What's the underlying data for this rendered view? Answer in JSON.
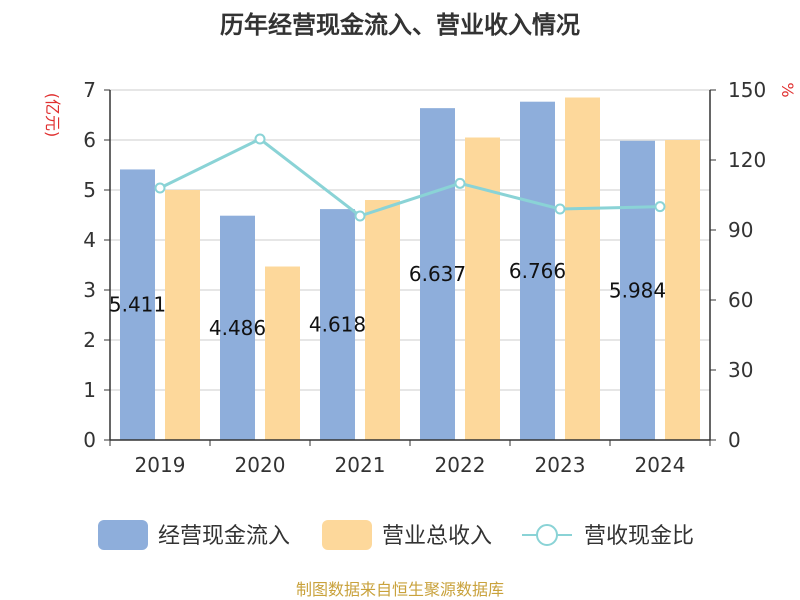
{
  "chart_data": {
    "type": "bar",
    "title": "历年经营现金流入、营业收入情况",
    "categories": [
      "2019",
      "2020",
      "2021",
      "2022",
      "2023",
      "2024"
    ],
    "y_left": {
      "unit": "(亿元)",
      "ylim": [
        0,
        7
      ],
      "ticks": [
        "0",
        "1",
        "2",
        "3",
        "4",
        "5",
        "6",
        "7"
      ]
    },
    "y_right": {
      "unit": "%",
      "ylim": [
        0,
        150
      ],
      "ticks": [
        "0",
        "30",
        "60",
        "90",
        "120",
        "150"
      ]
    },
    "series": [
      {
        "name": "经营现金流入",
        "type": "bar",
        "axis": "left",
        "color": "#8eaedb",
        "values": [
          5.411,
          4.486,
          4.618,
          6.637,
          6.766,
          5.984
        ],
        "labels": [
          "5.411",
          "4.486",
          "4.618",
          "6.637",
          "6.766",
          "5.984"
        ]
      },
      {
        "name": "营业总收入",
        "type": "bar",
        "axis": "left",
        "color": "#fdd89b",
        "values": [
          5.0,
          3.47,
          4.8,
          6.05,
          6.85,
          6.0
        ]
      },
      {
        "name": "营收现金比",
        "type": "line",
        "axis": "right",
        "color": "#8ad3d6",
        "values": [
          108,
          129,
          96,
          110,
          99,
          100
        ]
      }
    ],
    "grid": true,
    "legend": "bottom"
  },
  "footer": "制图数据来自恒生聚源数据库"
}
